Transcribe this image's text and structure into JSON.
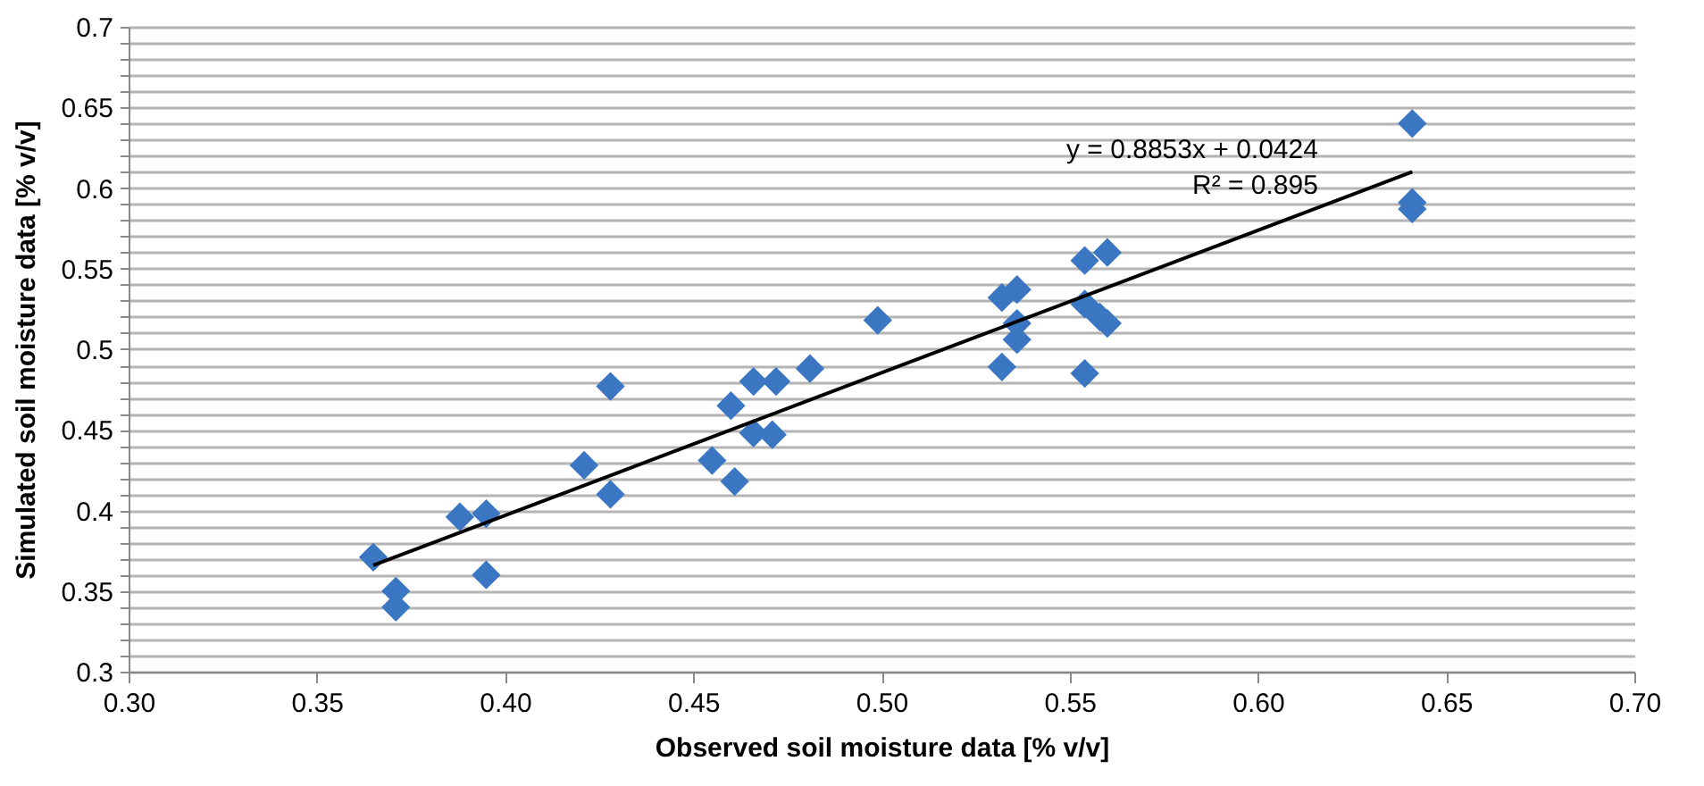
{
  "chart_data": {
    "type": "scatter",
    "xlabel": "Observed soil moisture data [% v/v]",
    "ylabel": "Simulated soil moisture data [% v/v]",
    "xlim": [
      0.3,
      0.7
    ],
    "xticks": [
      {
        "value": 0.3,
        "label": "0.30"
      },
      {
        "value": 0.35,
        "label": "0.35"
      },
      {
        "value": 0.4,
        "label": "0.40"
      },
      {
        "value": 0.45,
        "label": "0.45"
      },
      {
        "value": 0.5,
        "label": "0.50"
      },
      {
        "value": 0.55,
        "label": "0.55"
      },
      {
        "value": 0.6,
        "label": "0.60"
      },
      {
        "value": 0.65,
        "label": "0.65"
      },
      {
        "value": 0.7,
        "label": "0.70"
      }
    ],
    "ylim": [
      0.3,
      0.7
    ],
    "yticks": [
      0.3,
      {
        "value": 0.31,
        "label": null
      },
      {
        "value": 0.32,
        "label": null
      },
      {
        "value": 0.33,
        "label": null
      },
      {
        "value": 0.34,
        "label": null
      },
      0.35,
      {
        "value": 0.36,
        "label": null
      },
      {
        "value": 0.37,
        "label": null
      },
      {
        "value": 0.38,
        "label": null
      },
      {
        "value": 0.39,
        "label": null
      },
      0.4,
      {
        "value": 0.41,
        "label": null
      },
      {
        "value": 0.42,
        "label": null
      },
      {
        "value": 0.43,
        "label": null
      },
      {
        "value": 0.44,
        "label": null
      },
      0.45,
      {
        "value": 0.46,
        "label": null
      },
      {
        "value": 0.47,
        "label": null
      },
      {
        "value": 0.48,
        "label": null
      },
      {
        "value": 0.49,
        "label": null
      },
      0.5,
      {
        "value": 0.51,
        "label": null
      },
      {
        "value": 0.52,
        "label": null
      },
      {
        "value": 0.53,
        "label": null
      },
      {
        "value": 0.54,
        "label": null
      },
      0.55,
      {
        "value": 0.56,
        "label": null
      },
      {
        "value": 0.57,
        "label": null
      },
      {
        "value": 0.58,
        "label": null
      },
      {
        "value": 0.59,
        "label": null
      },
      0.6,
      {
        "value": 0.61,
        "label": null
      },
      {
        "value": 0.62,
        "label": null
      },
      {
        "value": 0.63,
        "label": null
      },
      {
        "value": 0.64,
        "label": null
      },
      0.65,
      {
        "value": 0.66,
        "label": null
      },
      {
        "value": 0.67,
        "label": null
      },
      {
        "value": 0.68,
        "label": null
      },
      {
        "value": 0.69,
        "label": null
      },
      0.7
    ],
    "grid": "y",
    "marker": "diamond",
    "series": [
      {
        "color": "#3b76c2",
        "x": [
          0.365,
          0.371,
          0.371,
          0.388,
          0.395,
          0.395,
          0.421,
          0.428,
          0.428,
          0.455,
          0.46,
          0.461,
          0.466,
          0.466,
          0.471,
          0.472,
          0.481,
          0.499,
          0.532,
          0.532,
          0.536,
          0.536,
          0.536,
          0.554,
          0.554,
          0.554,
          0.56,
          0.56,
          0.558,
          0.641,
          0.641,
          0.641
        ],
        "values": [
          0.371,
          0.35,
          0.34,
          0.396,
          0.398,
          0.36,
          0.428,
          0.477,
          0.41,
          0.431,
          0.465,
          0.418,
          0.48,
          0.448,
          0.447,
          0.48,
          0.488,
          0.518,
          0.532,
          0.489,
          0.537,
          0.516,
          0.506,
          0.555,
          0.528,
          0.485,
          0.56,
          0.516,
          0.52,
          0.64,
          0.591,
          0.587
        ]
      },
      {
        "type": "line",
        "color": "#000000",
        "marker": "none",
        "x": [
          0.365,
          0.641
        ],
        "values": [
          0.366,
          0.61
        ]
      }
    ],
    "annotations": [
      "y = 0.8853x + 0.0424",
      "R² = 0.895"
    ]
  }
}
